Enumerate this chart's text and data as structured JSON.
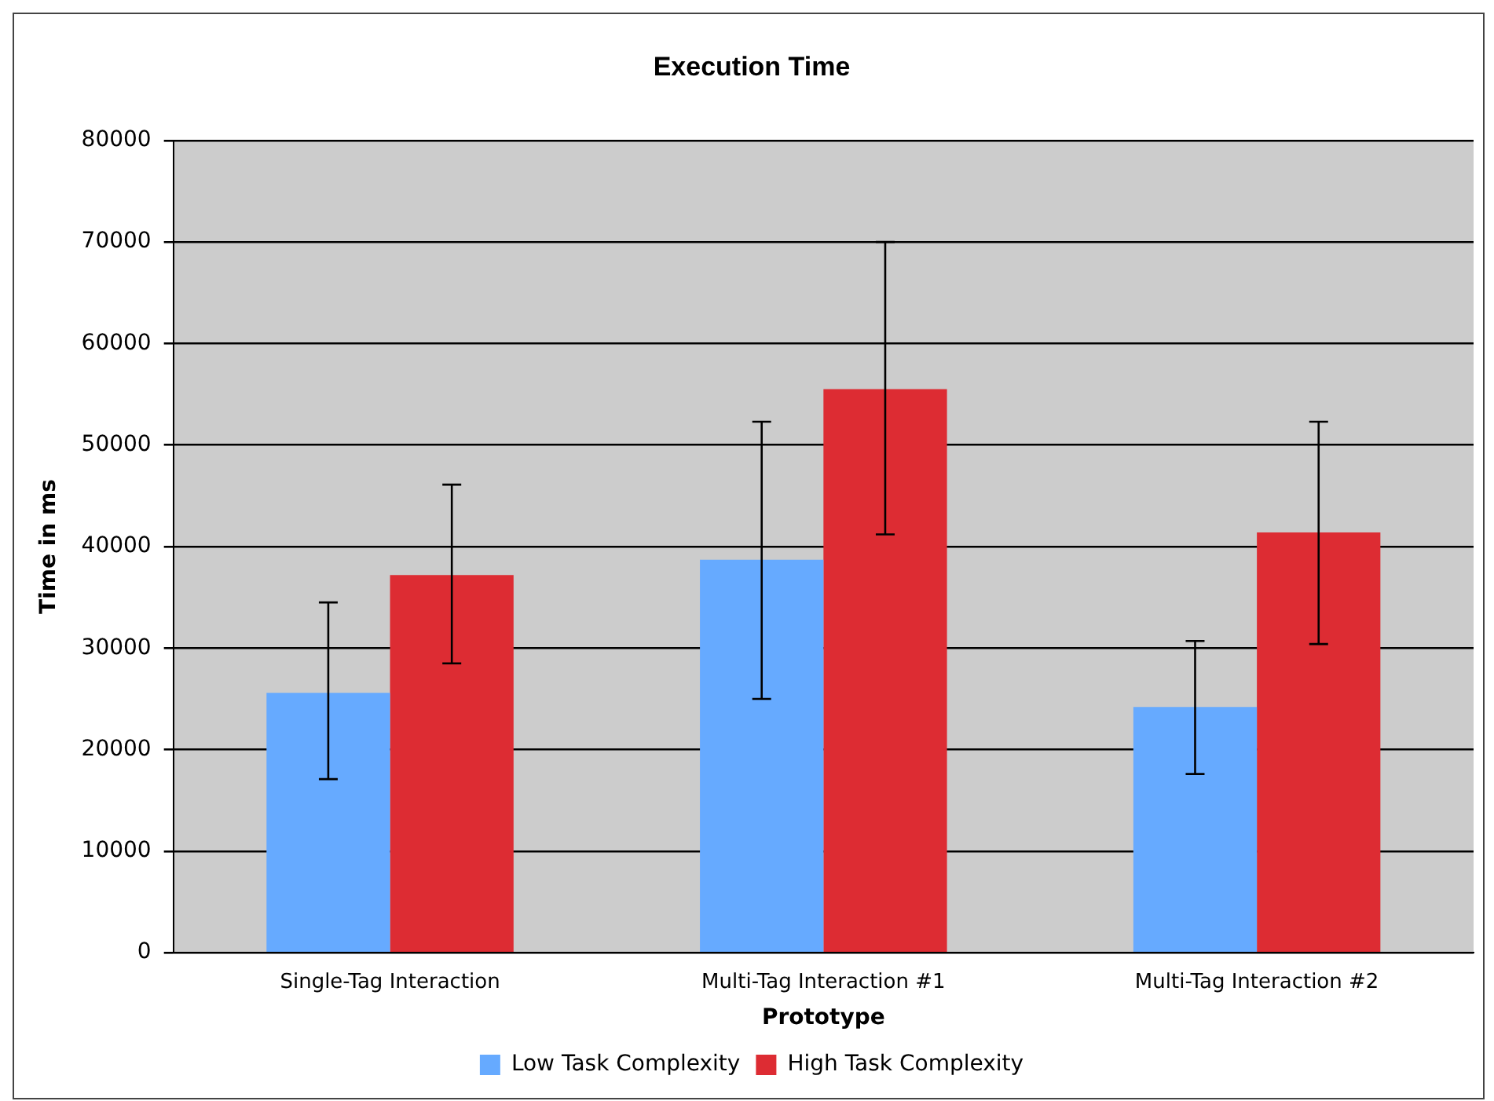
{
  "chart_data": {
    "type": "bar",
    "title": "Execution Time",
    "xlabel": "Prototype",
    "ylabel": "Time in ms",
    "categories": [
      "Single-Tag Interaction",
      "Multi-Tag Interaction #1",
      "Multi-Tag Interaction #2"
    ],
    "series": [
      {
        "name": "Low Task Complexity",
        "color": "#66aaff",
        "values": [
          25600,
          38700,
          24200
        ],
        "errors": [
          [
            17100,
            34500
          ],
          [
            25000,
            52300
          ],
          [
            17600,
            30700
          ]
        ]
      },
      {
        "name": "High Task Complexity",
        "color": "#dd2c33",
        "values": [
          37200,
          55500,
          41400
        ],
        "errors": [
          [
            28500,
            46100
          ],
          [
            41200,
            70000
          ],
          [
            30400,
            52300
          ]
        ]
      }
    ],
    "ylim": [
      0,
      80000
    ],
    "yticks": [
      0,
      10000,
      20000,
      30000,
      40000,
      50000,
      60000,
      70000,
      80000
    ],
    "grid": "y",
    "legend": "bottom"
  }
}
